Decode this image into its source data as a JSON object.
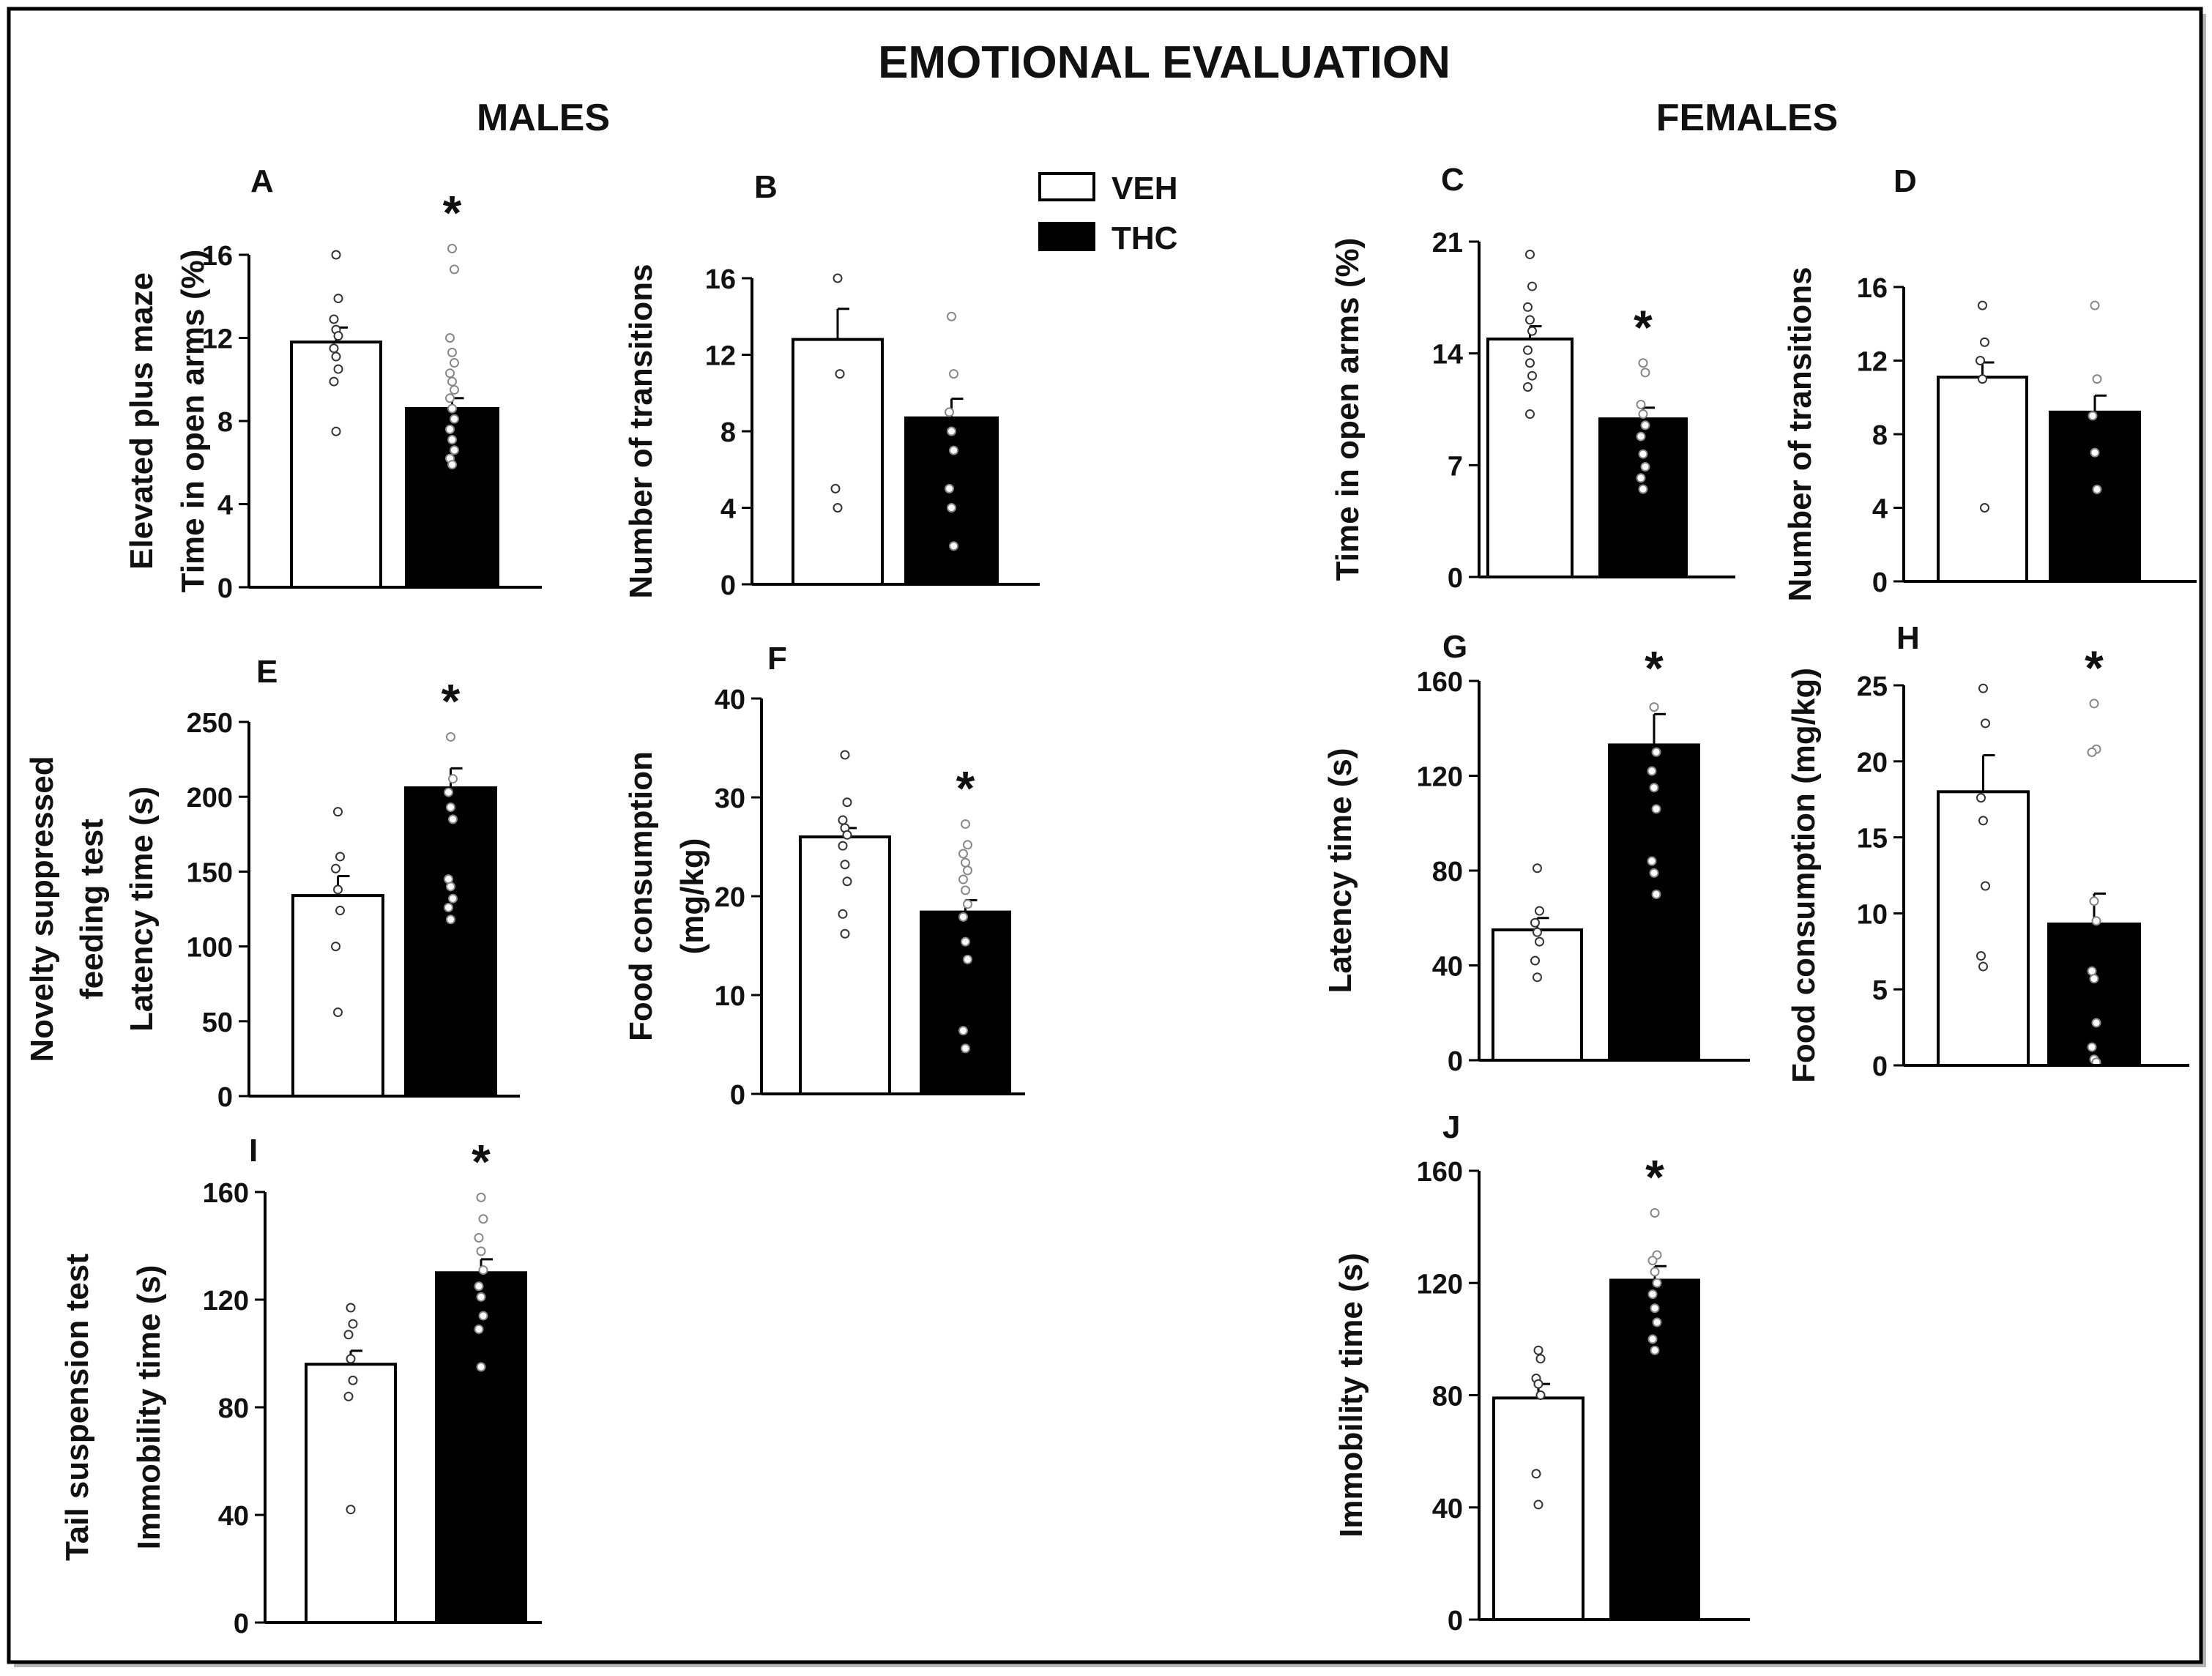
{
  "page": {
    "title": "EMOTIONAL EVALUATION",
    "males_label": "MALES",
    "females_label": "FEMALES"
  },
  "legend": [
    {
      "label": "VEH",
      "fill": "#ffffff"
    },
    {
      "label": "THC",
      "fill": "#000000"
    }
  ],
  "colors": {
    "veh": "#ffffff",
    "thc": "#000000",
    "veh_points": "#ffffff",
    "thc_points": "#ffffff",
    "axis": "#000000"
  },
  "significance_marker": "*",
  "chart_data": [
    {
      "id": "A",
      "type": "bar",
      "title": "",
      "categories": [
        "VEH",
        "THC"
      ],
      "values": [
        11.8,
        8.6
      ],
      "errors": [
        0.7,
        0.5
      ],
      "significant": [
        false,
        true
      ],
      "ylabel": [
        "Elevated plus maze",
        "Time in open arms (%)"
      ],
      "ylim": [
        0,
        16
      ],
      "yticks": [
        "0",
        "4",
        "8",
        "12",
        "16"
      ],
      "points": [
        [
          16,
          13.9,
          12.9,
          12.4,
          12.1,
          11.5,
          11.1,
          10.5,
          9.9,
          7.5
        ],
        [
          16.3,
          15.3,
          12,
          11.3,
          10.8,
          10.3,
          9.9,
          9.5,
          9.1,
          8.6,
          8.1,
          7.6,
          7.1,
          6.6,
          6.2,
          5.9
        ]
      ]
    },
    {
      "id": "B",
      "type": "bar",
      "title": "",
      "categories": [
        "VEH",
        "THC"
      ],
      "values": [
        12.8,
        8.7
      ],
      "errors": [
        1.6,
        1.0
      ],
      "significant": [
        false,
        false
      ],
      "ylabel": [
        "Number of transitions"
      ],
      "ylim": [
        0,
        16
      ],
      "yticks": [
        "0",
        "4",
        "8",
        "12",
        "16"
      ],
      "points": [
        [
          16,
          11,
          5,
          4
        ],
        [
          14,
          11,
          9,
          8,
          7,
          5,
          4,
          2
        ]
      ]
    },
    {
      "id": "C",
      "type": "bar",
      "title": "",
      "categories": [
        "VEH",
        "THC"
      ],
      "values": [
        14.9,
        9.9
      ],
      "errors": [
        0.8,
        0.7
      ],
      "significant": [
        false,
        true
      ],
      "ylabel": [
        "Time in open arms (%)"
      ],
      "ylim": [
        0,
        21
      ],
      "yticks": [
        "0",
        "7",
        "14",
        "21"
      ],
      "points": [
        [
          20.2,
          18.2,
          16.9,
          16.1,
          15.4,
          14.2,
          13.4,
          12.6,
          11.9,
          10.2
        ],
        [
          13.4,
          12.8,
          10.8,
          10.2,
          9.5,
          8.8,
          7.7,
          6.9,
          6.2,
          5.5
        ]
      ]
    },
    {
      "id": "D",
      "type": "bar",
      "title": "",
      "categories": [
        "VEH",
        "THC"
      ],
      "values": [
        11.1,
        9.2
      ],
      "errors": [
        0.8,
        0.9
      ],
      "significant": [
        false,
        false
      ],
      "ylabel": [
        "Number of transitions"
      ],
      "ylim": [
        0,
        16
      ],
      "yticks": [
        "0",
        "4",
        "8",
        "12",
        "16"
      ],
      "points": [
        [
          15,
          13,
          12,
          11,
          4
        ],
        [
          15,
          11,
          9,
          7,
          5
        ]
      ]
    },
    {
      "id": "E",
      "type": "bar",
      "title": "",
      "categories": [
        "VEH",
        "THC"
      ],
      "values": [
        134,
        206
      ],
      "errors": [
        13,
        13
      ],
      "significant": [
        false,
        true
      ],
      "ylabel": [
        "Novelty suppressed",
        "feeding test",
        "Latency time (s)"
      ],
      "ylim": [
        0,
        250
      ],
      "yticks": [
        "0",
        "50",
        "100",
        "150",
        "200",
        "250"
      ],
      "points": [
        [
          190,
          160,
          152,
          138,
          124,
          100,
          56
        ],
        [
          240,
          212,
          203,
          193,
          185,
          145,
          140,
          132,
          126,
          118
        ]
      ]
    },
    {
      "id": "F",
      "type": "bar",
      "title": "",
      "categories": [
        "VEH",
        "THC"
      ],
      "values": [
        26,
        18.4
      ],
      "errors": [
        0.9,
        1.2
      ],
      "significant": [
        false,
        true
      ],
      "ylabel": [
        "Food consumption",
        "(mg/kg)"
      ],
      "ylim": [
        0,
        40
      ],
      "yticks": [
        "0",
        "10",
        "20",
        "30",
        "40"
      ],
      "points": [
        [
          34.3,
          29.5,
          27.7,
          26.9,
          26.2,
          25.1,
          23.2,
          21.5,
          18.2,
          16.2
        ],
        [
          27.3,
          25.2,
          24.3,
          23.4,
          22.6,
          21.7,
          20.6,
          19.2,
          17.9,
          15.4,
          13.6,
          6.4,
          4.6
        ]
      ]
    },
    {
      "id": "G",
      "type": "bar",
      "title": "",
      "categories": [
        "VEH",
        "THC"
      ],
      "values": [
        55,
        133
      ],
      "errors": [
        5,
        13
      ],
      "significant": [
        false,
        true
      ],
      "ylabel": [
        "Latency time (s)"
      ],
      "ylim": [
        0,
        160
      ],
      "yticks": [
        "0",
        "40",
        "80",
        "120",
        "160"
      ],
      "points": [
        [
          81,
          63,
          58,
          54,
          50,
          42,
          35
        ],
        [
          149,
          130,
          122,
          115,
          106,
          84,
          79,
          70
        ]
      ]
    },
    {
      "id": "H",
      "type": "bar",
      "title": "",
      "categories": [
        "VEH",
        "THC"
      ],
      "values": [
        18,
        9.3
      ],
      "errors": [
        2.4,
        2.0
      ],
      "significant": [
        false,
        true
      ],
      "ylabel": [
        "Food consumption  (mg/kg)"
      ],
      "ylim": [
        0,
        25
      ],
      "yticks": [
        "0",
        "5",
        "10",
        "15",
        "20",
        "25"
      ],
      "points": [
        [
          24.8,
          22.5,
          17.6,
          16.1,
          11.8,
          7.2,
          6.5
        ],
        [
          23.8,
          20.8,
          20.6,
          10.8,
          9.5,
          6.2,
          5.7,
          2.8,
          1.2,
          0.4,
          0.2
        ]
      ]
    },
    {
      "id": "I",
      "type": "bar",
      "title": "",
      "categories": [
        "VEH",
        "THC"
      ],
      "values": [
        96,
        130
      ],
      "errors": [
        5,
        5
      ],
      "significant": [
        false,
        true
      ],
      "ylabel": [
        "Tail suspension test",
        "Immobility time (s)"
      ],
      "ylim": [
        0,
        160
      ],
      "yticks": [
        "0",
        "40",
        "80",
        "120",
        "160"
      ],
      "points": [
        [
          117,
          111,
          107,
          98,
          90,
          84,
          42
        ],
        [
          158,
          150,
          143,
          138,
          131,
          125,
          121,
          114,
          109,
          95
        ]
      ]
    },
    {
      "id": "J",
      "type": "bar",
      "title": "",
      "categories": [
        "VEH",
        "THC"
      ],
      "values": [
        79,
        121
      ],
      "errors": [
        5,
        5
      ],
      "significant": [
        false,
        true
      ],
      "ylabel": [
        "Immobility  time (s)"
      ],
      "ylim": [
        0,
        160
      ],
      "yticks": [
        "0",
        "40",
        "80",
        "120",
        "160"
      ],
      "points": [
        [
          96,
          93,
          86,
          84,
          80,
          52,
          41
        ],
        [
          145,
          130,
          128,
          124,
          120,
          116,
          111,
          106,
          100,
          96
        ]
      ]
    }
  ]
}
